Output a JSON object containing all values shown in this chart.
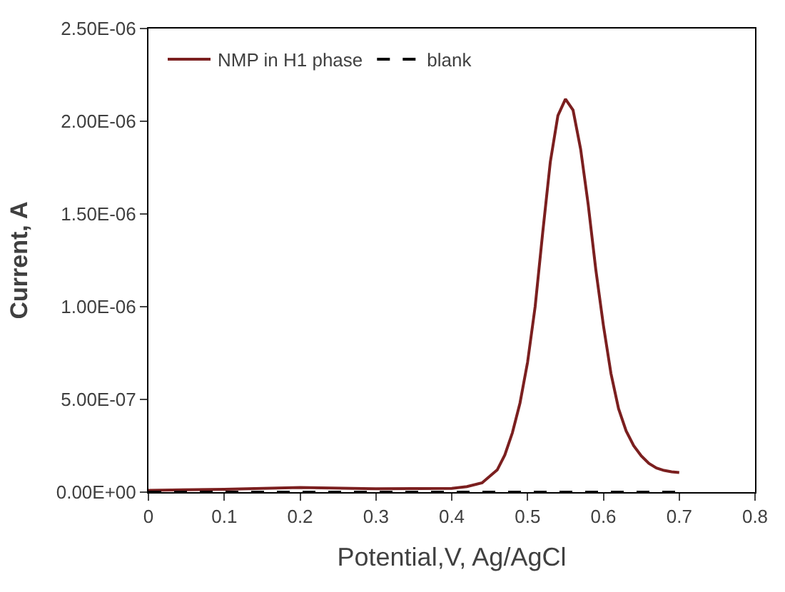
{
  "chart_data": {
    "type": "line",
    "xlabel": "Potential,V, Ag/AgCl",
    "ylabel": "Current, A",
    "xlim": [
      0,
      0.8
    ],
    "xticks": [
      0,
      0.1,
      0.2,
      0.3,
      0.4,
      0.5,
      0.6,
      0.7,
      0.8
    ],
    "ylim": [
      0,
      2.5e-06
    ],
    "yticks": [
      {
        "value": 0,
        "label": "0.00E+00"
      },
      {
        "value": 5e-07,
        "label": "5.00E-07"
      },
      {
        "value": 1e-06,
        "label": "1.00E-06"
      },
      {
        "value": 1.5e-06,
        "label": "1.50E-06"
      },
      {
        "value": 2e-06,
        "label": "2.00E-06"
      },
      {
        "value": 2.5e-06,
        "label": "2.50E-06"
      }
    ],
    "legend": "top left",
    "marker": "none",
    "series": [
      {
        "name": "NMP in H1 phase",
        "color": "#7b1f1f",
        "line_style": "solid",
        "x": [
          0,
          0.1,
          0.2,
          0.3,
          0.4,
          0.42,
          0.44,
          0.46,
          0.47,
          0.48,
          0.49,
          0.5,
          0.51,
          0.52,
          0.53,
          0.54,
          0.55,
          0.56,
          0.57,
          0.58,
          0.59,
          0.6,
          0.61,
          0.62,
          0.63,
          0.64,
          0.65,
          0.66,
          0.67,
          0.68,
          0.69,
          0.7
        ],
        "values": [
          1e-08,
          1.5e-08,
          2.5e-08,
          1.8e-08,
          2e-08,
          3e-08,
          5e-08,
          1.2e-07,
          2e-07,
          3.2e-07,
          4.8e-07,
          7e-07,
          1e-06,
          1.4e-06,
          1.78e-06,
          2.03e-06,
          2.12e-06,
          2.06e-06,
          1.85e-06,
          1.55e-06,
          1.2e-06,
          9e-07,
          6.4e-07,
          4.5e-07,
          3.3e-07,
          2.5e-07,
          1.95e-07,
          1.55e-07,
          1.3e-07,
          1.17e-07,
          1.1e-07,
          1.06e-07
        ]
      },
      {
        "name": "blank",
        "color": "#000000",
        "line_style": "dashed",
        "x": [
          0,
          0.7
        ],
        "values": [
          0,
          0
        ]
      }
    ]
  }
}
